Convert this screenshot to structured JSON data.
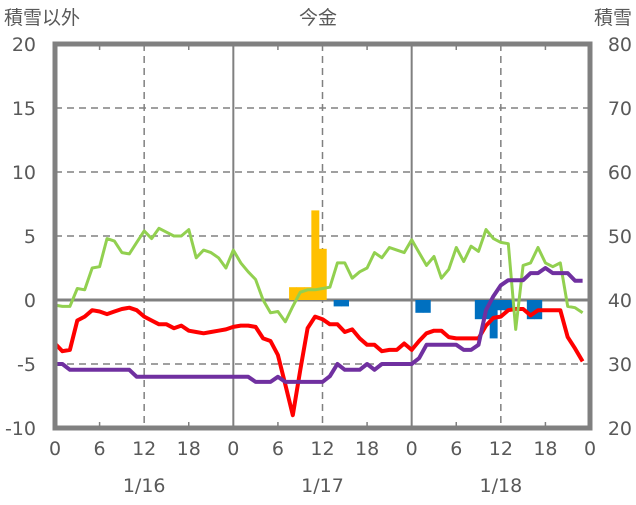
{
  "chart_data": {
    "type": "line",
    "title": "今金",
    "ylabel_left": "積雪以外",
    "ylabel_right": "積雪",
    "ylim_left": [
      -10,
      20
    ],
    "ylim_right": [
      20,
      80
    ],
    "yticks_left": [
      "20",
      "15",
      "10",
      "5",
      "0",
      "-5",
      "-10"
    ],
    "yticks_right": [
      "80",
      "70",
      "60",
      "50",
      "40",
      "30",
      "20"
    ],
    "xticks": [
      "0",
      "6",
      "12",
      "18",
      "0",
      "6",
      "12",
      "18",
      "0",
      "6",
      "12",
      "18",
      "0"
    ],
    "date_labels": [
      "1/16",
      "1/17",
      "1/18"
    ],
    "x_hours_range": [
      0,
      72
    ],
    "grid": true,
    "colors": {
      "red": "#ff0000",
      "green": "#92d050",
      "purple": "#7030a0",
      "orange": "#ffc000",
      "blue": "#0070c0",
      "axis": "#808080"
    },
    "series": [
      {
        "key": "red",
        "axis": "left",
        "kind": "line",
        "values": [
          -3.4,
          -4.0,
          -3.9,
          -1.6,
          -1.3,
          -0.8,
          -0.9,
          -1.1,
          -0.9,
          -0.7,
          -0.6,
          -0.8,
          -1.3,
          -1.6,
          -1.9,
          -1.9,
          -2.2,
          -2.0,
          -2.4,
          -2.5,
          -2.6,
          -2.5,
          -2.4,
          -2.3,
          -2.1,
          -2.0,
          -2.0,
          -2.1,
          -3.0,
          -3.2,
          -4.3,
          -6.6,
          -9.0,
          -5.5,
          -2.2,
          -1.3,
          -1.5,
          -1.9,
          -1.9,
          -2.5,
          -2.3,
          -3.0,
          -3.5,
          -3.5,
          -4.0,
          -3.9,
          -3.9,
          -3.4,
          -3.9,
          -3.2,
          -2.6,
          -2.4,
          -2.4,
          -2.9,
          -3.0,
          -3.0,
          -3.0,
          -3.0,
          -2.0,
          -1.4,
          -1.3,
          -0.8,
          -0.7,
          -0.7,
          -1.2,
          -0.8,
          -0.8,
          -0.8,
          -0.8,
          -2.9,
          -3.8,
          -4.8
        ]
      },
      {
        "key": "green",
        "axis": "left",
        "kind": "line",
        "values": [
          -0.4,
          -0.5,
          -0.5,
          0.9,
          0.8,
          2.5,
          2.6,
          4.8,
          4.6,
          3.7,
          3.6,
          4.5,
          5.4,
          4.8,
          5.6,
          5.3,
          5.0,
          5.0,
          5.5,
          3.3,
          3.9,
          3.7,
          3.3,
          2.5,
          3.9,
          2.9,
          2.2,
          1.6,
          0.0,
          -1.0,
          -0.9,
          -1.7,
          -0.5,
          0.6,
          0.8,
          0.8,
          0.9,
          1.0,
          2.9,
          2.9,
          1.7,
          2.2,
          2.5,
          3.7,
          3.3,
          4.1,
          3.9,
          3.7,
          4.7,
          3.7,
          2.7,
          3.4,
          1.7,
          2.4,
          4.1,
          3.0,
          4.2,
          3.8,
          5.5,
          4.8,
          4.5,
          4.4,
          -2.3,
          2.7,
          2.9,
          4.1,
          2.9,
          2.6,
          2.9,
          -0.5,
          -0.6,
          -1.0
        ]
      },
      {
        "key": "purple",
        "axis": "right",
        "kind": "line",
        "values": [
          30,
          30,
          29.1,
          29.1,
          29.1,
          29.1,
          29.1,
          29.1,
          29.1,
          29.1,
          29.1,
          28,
          28,
          28,
          28,
          28,
          28,
          28,
          28,
          28,
          28,
          28,
          28,
          28,
          28,
          28,
          28,
          27.2,
          27.2,
          27.2,
          28,
          27.2,
          27.2,
          27.2,
          27.2,
          27.2,
          27.2,
          28.1,
          30,
          29.1,
          29.1,
          29.1,
          30,
          29.1,
          30,
          30,
          30,
          30,
          30,
          30.9,
          33,
          33,
          33,
          33,
          33,
          32.2,
          32.2,
          33,
          38.4,
          40.6,
          42.3,
          43.1,
          43.1,
          43.1,
          44.2,
          44.2,
          45,
          44.2,
          44.2,
          44.2,
          43,
          43
        ]
      },
      {
        "key": "orange",
        "axis": "left",
        "kind": "bar",
        "points": [
          [
            32,
            1.0
          ],
          [
            33,
            1.0
          ],
          [
            34,
            1.0
          ],
          [
            35,
            7.0
          ],
          [
            36,
            4.0
          ]
        ]
      },
      {
        "key": "blue",
        "axis": "left",
        "kind": "bar",
        "points": [
          [
            38,
            -0.5
          ],
          [
            39,
            -0.5
          ],
          [
            49,
            -1.0
          ],
          [
            50,
            -1.0
          ],
          [
            57,
            -1.5
          ],
          [
            58,
            -1.5
          ],
          [
            59,
            -3.0
          ],
          [
            60,
            -0.8
          ],
          [
            61,
            -0.8
          ],
          [
            64,
            -1.5
          ],
          [
            65,
            -1.5
          ]
        ]
      }
    ]
  }
}
